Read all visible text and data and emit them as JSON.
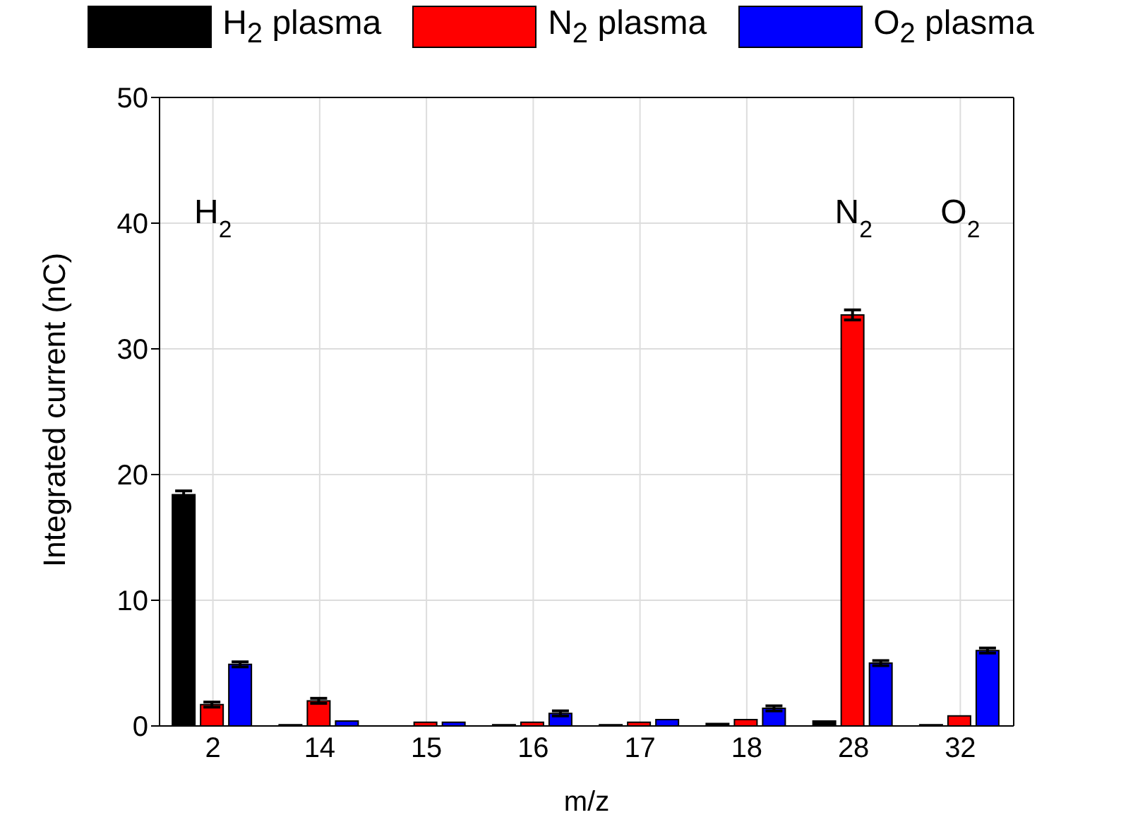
{
  "chart_data": {
    "type": "bar",
    "xlabel": "m/z",
    "ylabel": "Integrated current (nC)",
    "categories": [
      "2",
      "14",
      "15",
      "16",
      "17",
      "18",
      "28",
      "32"
    ],
    "series": [
      {
        "name": "H$_{2}$ plasma",
        "color": "#000000",
        "values": [
          18.4,
          0.1,
          null,
          0.1,
          0.1,
          0.2,
          0.4,
          0.1
        ],
        "errors": [
          0.3,
          null,
          null,
          null,
          null,
          null,
          null,
          null
        ]
      },
      {
        "name": "N$_{2}$ plasma",
        "color": "#ff0000",
        "values": [
          1.7,
          2.0,
          0.3,
          0.3,
          0.3,
          0.5,
          32.7,
          0.8
        ],
        "errors": [
          0.2,
          0.2,
          null,
          null,
          null,
          null,
          0.4,
          null
        ]
      },
      {
        "name": "O$_{2}$ plasma",
        "color": "#0000ff",
        "values": [
          4.9,
          0.4,
          0.3,
          1.0,
          0.5,
          1.4,
          5.0,
          6.0
        ],
        "errors": [
          0.2,
          null,
          null,
          0.2,
          null,
          0.2,
          0.2,
          0.2
        ]
      }
    ],
    "ylim": [
      0,
      50
    ],
    "yticks": [
      0,
      10,
      20,
      30,
      40,
      50
    ],
    "grid": true,
    "legend": "top",
    "annotations": [
      "H$_{2}$",
      "N$_{2}$",
      "O$_{2}$"
    ]
  }
}
